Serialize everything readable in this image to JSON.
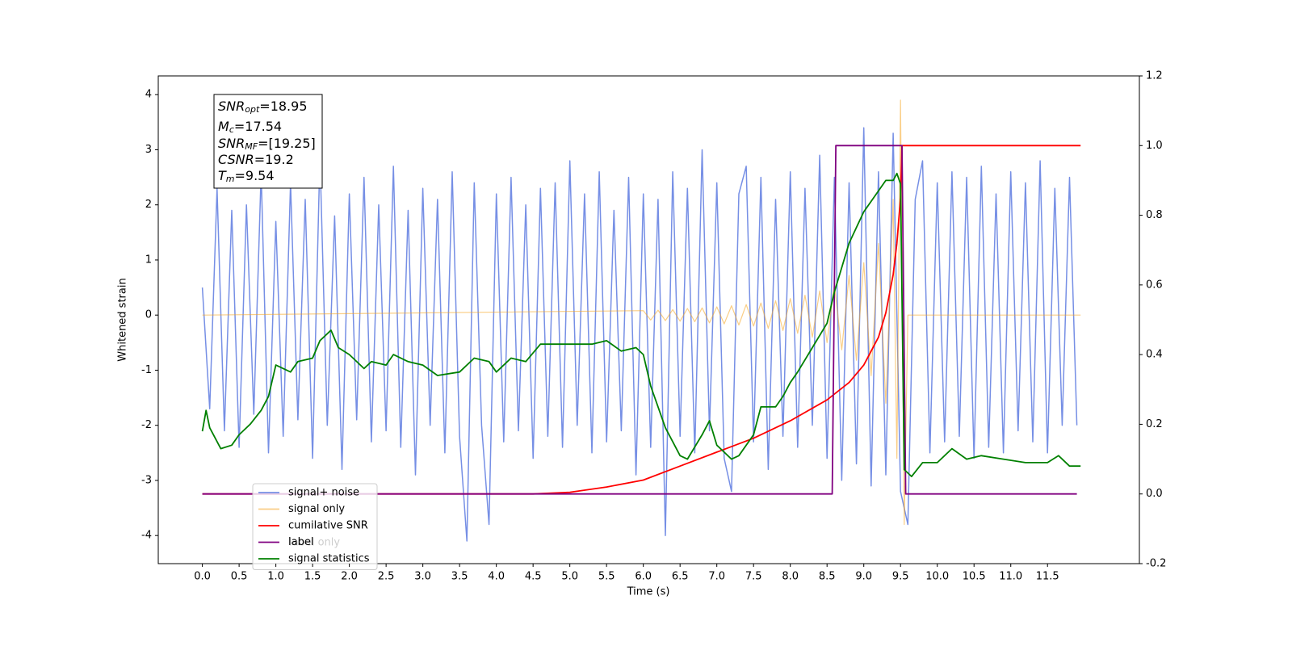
{
  "chart_data": {
    "type": "line",
    "xlabel": "Time (s)",
    "ylabel": "Whitened strain",
    "xlim": [
      -0.6,
      12.75
    ],
    "ylim": [
      -4.51,
      4.34
    ],
    "y2lim": [
      -0.2,
      1.2
    ],
    "xticks": [
      {
        "value": 0,
        "label": "0.0"
      },
      {
        "value": 0.5,
        "label": "0.5"
      },
      {
        "value": 1,
        "label": "1.0"
      },
      {
        "value": 1.5,
        "label": "1.5"
      },
      {
        "value": 2,
        "label": "2.0"
      },
      {
        "value": 2.5,
        "label": "2.5"
      },
      {
        "value": 3,
        "label": "3.0"
      },
      {
        "value": 3.5,
        "label": "3.5"
      },
      {
        "value": 4,
        "label": "4.0"
      },
      {
        "value": 4.5,
        "label": "4.5"
      },
      {
        "value": 5,
        "label": "5.0"
      },
      {
        "value": 5.5,
        "label": "5.5"
      },
      {
        "value": 6,
        "label": "6.0"
      },
      {
        "value": 6.5,
        "label": "6.5"
      },
      {
        "value": 7,
        "label": "7.0"
      },
      {
        "value": 7.5,
        "label": "7.5"
      },
      {
        "value": 8,
        "label": "8.0"
      },
      {
        "value": 8.5,
        "label": "8.5"
      },
      {
        "value": 9,
        "label": "9.0"
      },
      {
        "value": 9.5,
        "label": "9.5"
      },
      {
        "value": 10,
        "label": "10.0"
      },
      {
        "value": 10.5,
        "label": "10.5"
      },
      {
        "value": 11,
        "label": "11.0"
      },
      {
        "value": 11.5,
        "label": "11.5"
      }
    ],
    "yticks": [
      -4,
      -3,
      -2,
      -1,
      0,
      1,
      2,
      3,
      4
    ],
    "y2ticks": [
      -0.2,
      {
        "value": 0,
        "label": "0.0"
      },
      0.2,
      0.4,
      0.6,
      0.8,
      {
        "value": 1,
        "label": "1.0"
      },
      1.2
    ],
    "legend": "lower left",
    "ghost_label": "label only",
    "stats_box": [
      {
        "symbol": "SNR",
        "sub": "opt",
        "text": "=18.95"
      },
      {
        "symbol": "M",
        "sub": "c",
        "text": "=17.54"
      },
      {
        "symbol": "SNR",
        "sub": "MF",
        "text": "=[19.25]"
      },
      {
        "symbol": "CSNR",
        "text": "=19.2"
      },
      {
        "symbol": "T",
        "sub": "m",
        "text": "=9.54"
      }
    ],
    "series": [
      {
        "name": "signal+ noise",
        "color": "#6f89e4",
        "axis": "y",
        "x": [
          0,
          0.1,
          0.2,
          0.3,
          0.4,
          0.5,
          0.6,
          0.7,
          0.8,
          0.9,
          1,
          1.1,
          1.2,
          1.3,
          1.4,
          1.5,
          1.6,
          1.7,
          1.8,
          1.9,
          2,
          2.1,
          2.2,
          2.3,
          2.4,
          2.5,
          2.6,
          2.7,
          2.8,
          2.9,
          3,
          3.1,
          3.2,
          3.3,
          3.4,
          3.5,
          3.6,
          3.7,
          3.8,
          3.9,
          4,
          4.1,
          4.2,
          4.3,
          4.4,
          4.5,
          4.6,
          4.7,
          4.8,
          4.9,
          5,
          5.1,
          5.2,
          5.3,
          5.4,
          5.5,
          5.6,
          5.7,
          5.8,
          5.9,
          6,
          6.1,
          6.2,
          6.3,
          6.4,
          6.5,
          6.6,
          6.7,
          6.8,
          6.9,
          7,
          7.1,
          7.2,
          7.3,
          7.4,
          7.5,
          7.6,
          7.7,
          7.8,
          7.9,
          8,
          8.1,
          8.2,
          8.3,
          8.4,
          8.5,
          8.6,
          8.7,
          8.8,
          8.9,
          9,
          9.1,
          9.2,
          9.3,
          9.4,
          9.5,
          9.6,
          9.7,
          9.8,
          9.9,
          10,
          10.1,
          10.2,
          10.3,
          10.4,
          10.5,
          10.6,
          10.7,
          10.8,
          10.9,
          11,
          11.1,
          11.2,
          11.3,
          11.4,
          11.5,
          11.6,
          11.7,
          11.8,
          11.9
        ],
        "values": [
          0.5,
          -1.7,
          2.3,
          -2.1,
          1.9,
          -2.4,
          2.0,
          -1.8,
          2.6,
          -2.5,
          1.7,
          -2.2,
          2.4,
          -1.9,
          2.1,
          -2.6,
          2.9,
          -2.0,
          1.8,
          -2.8,
          2.2,
          -1.9,
          2.5,
          -2.3,
          2.0,
          -2.1,
          2.7,
          -2.4,
          1.9,
          -2.9,
          2.3,
          -2.0,
          2.1,
          -2.5,
          2.6,
          -2.2,
          -4.1,
          2.4,
          -2.0,
          -3.8,
          2.2,
          -2.3,
          2.5,
          -2.1,
          2.0,
          -2.6,
          2.3,
          -2.2,
          2.4,
          -2.4,
          2.8,
          -2.0,
          2.2,
          -2.5,
          2.6,
          -2.3,
          1.9,
          -2.1,
          2.5,
          -2.9,
          2.2,
          -2.4,
          2.1,
          -4.0,
          2.6,
          -2.2,
          2.3,
          -2.5,
          3.0,
          -2.1,
          2.4,
          -2.6,
          -3.2,
          2.2,
          2.7,
          -2.3,
          2.5,
          -2.8,
          2.1,
          -2.2,
          2.6,
          -2.4,
          2.3,
          -2.0,
          2.9,
          -2.6,
          2.5,
          -3.0,
          2.4,
          -2.7,
          3.4,
          -3.1,
          2.6,
          -2.9,
          3.3,
          -3.2,
          -3.8,
          2.1,
          2.8,
          -2.5,
          2.4,
          -2.3,
          2.6,
          -2.2,
          2.5,
          -2.6,
          2.7,
          -2.4,
          2.2,
          -2.5,
          2.6,
          -2.1,
          2.4,
          -2.3,
          2.8,
          -2.5,
          2.3,
          -2.0,
          2.5,
          -2.0
        ]
      },
      {
        "name": "signal only",
        "color": "#f5a623",
        "axis": "y",
        "x": [
          0,
          6.0,
          6.1,
          6.2,
          6.3,
          6.4,
          6.5,
          6.6,
          6.7,
          6.8,
          6.9,
          7.0,
          7.1,
          7.2,
          7.3,
          7.4,
          7.5,
          7.6,
          7.7,
          7.8,
          7.9,
          8.0,
          8.1,
          8.2,
          8.3,
          8.4,
          8.5,
          8.6,
          8.7,
          8.8,
          8.9,
          9.0,
          9.1,
          9.2,
          9.3,
          9.4,
          9.45,
          9.5,
          9.55,
          9.6,
          11.95
        ],
        "values": [
          0,
          0.08,
          -0.09,
          0.09,
          -0.1,
          0.1,
          -0.11,
          0.12,
          -0.12,
          0.13,
          -0.14,
          0.15,
          -0.16,
          0.17,
          -0.18,
          0.19,
          -0.2,
          0.22,
          -0.24,
          0.26,
          -0.28,
          0.3,
          -0.33,
          0.36,
          -0.4,
          0.44,
          -0.5,
          0.56,
          -0.63,
          0.72,
          -0.82,
          0.95,
          -1.1,
          1.3,
          -1.6,
          2.1,
          -2.6,
          3.9,
          -3.8,
          0,
          0
        ]
      },
      {
        "name": "cumilative SNR",
        "color": "#ff0000",
        "axis": "y2",
        "x": [
          0,
          4.5,
          5.0,
          5.5,
          6.0,
          6.5,
          7.0,
          7.5,
          8.0,
          8.5,
          8.8,
          9.0,
          9.2,
          9.3,
          9.4,
          9.45,
          9.5,
          9.52,
          9.55,
          11.95
        ],
        "values": [
          0,
          0,
          0.005,
          0.02,
          0.04,
          0.08,
          0.12,
          0.16,
          0.21,
          0.27,
          0.32,
          0.37,
          0.45,
          0.52,
          0.63,
          0.72,
          0.85,
          1.0,
          1.0,
          1.0
        ]
      },
      {
        "name": "label",
        "color": "#800080",
        "axis": "y2",
        "x": [
          0,
          8.57,
          8.62,
          9.52,
          9.57,
          11.9
        ],
        "values": [
          0,
          0,
          1,
          1,
          0,
          0
        ]
      },
      {
        "name": "signal statistics",
        "color": "#008000",
        "axis": "y2",
        "x": [
          0,
          0.05,
          0.1,
          0.25,
          0.4,
          0.5,
          0.65,
          0.8,
          0.9,
          1.0,
          1.2,
          1.3,
          1.5,
          1.6,
          1.7,
          1.75,
          1.85,
          2.0,
          2.2,
          2.3,
          2.5,
          2.6,
          2.8,
          3.0,
          3.2,
          3.5,
          3.7,
          3.9,
          4.0,
          4.2,
          4.4,
          4.6,
          4.8,
          5.0,
          5.3,
          5.5,
          5.7,
          5.9,
          6.0,
          6.1,
          6.3,
          6.5,
          6.6,
          6.8,
          6.9,
          7.0,
          7.2,
          7.3,
          7.5,
          7.6,
          7.8,
          7.9,
          8.0,
          8.1,
          8.3,
          8.5,
          8.6,
          8.8,
          9.0,
          9.2,
          9.3,
          9.4,
          9.45,
          9.5,
          9.55,
          9.65,
          9.8,
          10.0,
          10.2,
          10.4,
          10.6,
          10.9,
          11.2,
          11.5,
          11.65,
          11.8,
          11.95
        ],
        "values": [
          0.18,
          0.24,
          0.19,
          0.13,
          0.14,
          0.17,
          0.2,
          0.24,
          0.28,
          0.37,
          0.35,
          0.38,
          0.39,
          0.44,
          0.46,
          0.47,
          0.42,
          0.4,
          0.36,
          0.38,
          0.37,
          0.4,
          0.38,
          0.37,
          0.34,
          0.35,
          0.39,
          0.38,
          0.35,
          0.39,
          0.38,
          0.43,
          0.43,
          0.43,
          0.43,
          0.44,
          0.41,
          0.42,
          0.4,
          0.31,
          0.19,
          0.11,
          0.1,
          0.17,
          0.21,
          0.14,
          0.1,
          0.11,
          0.17,
          0.25,
          0.25,
          0.28,
          0.32,
          0.35,
          0.42,
          0.49,
          0.58,
          0.72,
          0.81,
          0.87,
          0.9,
          0.9,
          0.92,
          0.89,
          0.07,
          0.05,
          0.09,
          0.09,
          0.13,
          0.1,
          0.11,
          0.1,
          0.09,
          0.09,
          0.11,
          0.08,
          0.08
        ]
      }
    ]
  }
}
